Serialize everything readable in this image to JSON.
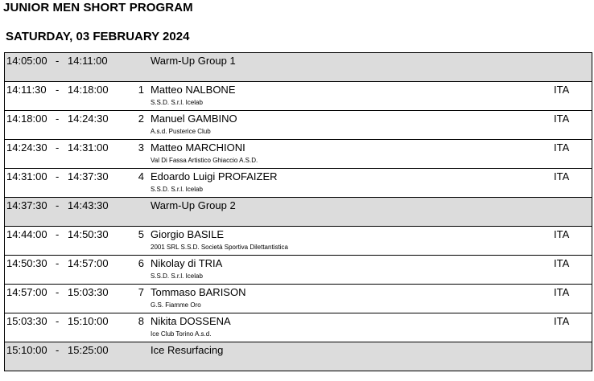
{
  "header": {
    "title": "JUNIOR MEN SHORT PROGRAM",
    "date": "SATURDAY, 03 FEBRUARY 2024"
  },
  "schedule": [
    {
      "type": "event",
      "start": "14:05:00",
      "end": "14:11:00",
      "label": "Warm-Up Group 1"
    },
    {
      "type": "skater",
      "start": "14:11:30",
      "end": "14:18:00",
      "num": "1",
      "name": "Matteo NALBONE",
      "club": "S.S.D. S.r.l. Icelab",
      "nation": "ITA"
    },
    {
      "type": "skater",
      "start": "14:18:00",
      "end": "14:24:30",
      "num": "2",
      "name": "Manuel GAMBINO",
      "club": "A.s.d. Pusterice Club",
      "nation": "ITA"
    },
    {
      "type": "skater",
      "start": "14:24:30",
      "end": "14:31:00",
      "num": "3",
      "name": "Matteo MARCHIONI",
      "club": "Val Di Fassa Artistico Ghiaccio A.S.D.",
      "nation": "ITA"
    },
    {
      "type": "skater",
      "start": "14:31:00",
      "end": "14:37:30",
      "num": "4",
      "name": "Edoardo Luigi PROFAIZER",
      "club": "S.S.D. S.r.l. Icelab",
      "nation": "ITA"
    },
    {
      "type": "event",
      "start": "14:37:30",
      "end": "14:43:30",
      "label": "Warm-Up Group 2"
    },
    {
      "type": "skater",
      "start": "14:44:00",
      "end": "14:50:30",
      "num": "5",
      "name": "Giorgio BASILE",
      "club": "2001 SRL S.S.D.  Società Sportiva Dilettantistica",
      "nation": "ITA"
    },
    {
      "type": "skater",
      "start": "14:50:30",
      "end": "14:57:00",
      "num": "6",
      "name": "Nikolay di TRIA",
      "club": "S.S.D. S.r.l. Icelab",
      "nation": "ITA"
    },
    {
      "type": "skater",
      "start": "14:57:00",
      "end": "15:03:30",
      "num": "7",
      "name": "Tommaso BARISON",
      "club": "G.S. Fiamme Oro",
      "nation": "ITA"
    },
    {
      "type": "skater",
      "start": "15:03:30",
      "end": "15:10:00",
      "num": "8",
      "name": "Nikita DOSSENA",
      "club": "Ice Club Torino A.s.d.",
      "nation": "ITA"
    },
    {
      "type": "event",
      "start": "15:10:00",
      "end": "15:25:00",
      "label": "Ice Resurfacing"
    }
  ],
  "separator": "-"
}
